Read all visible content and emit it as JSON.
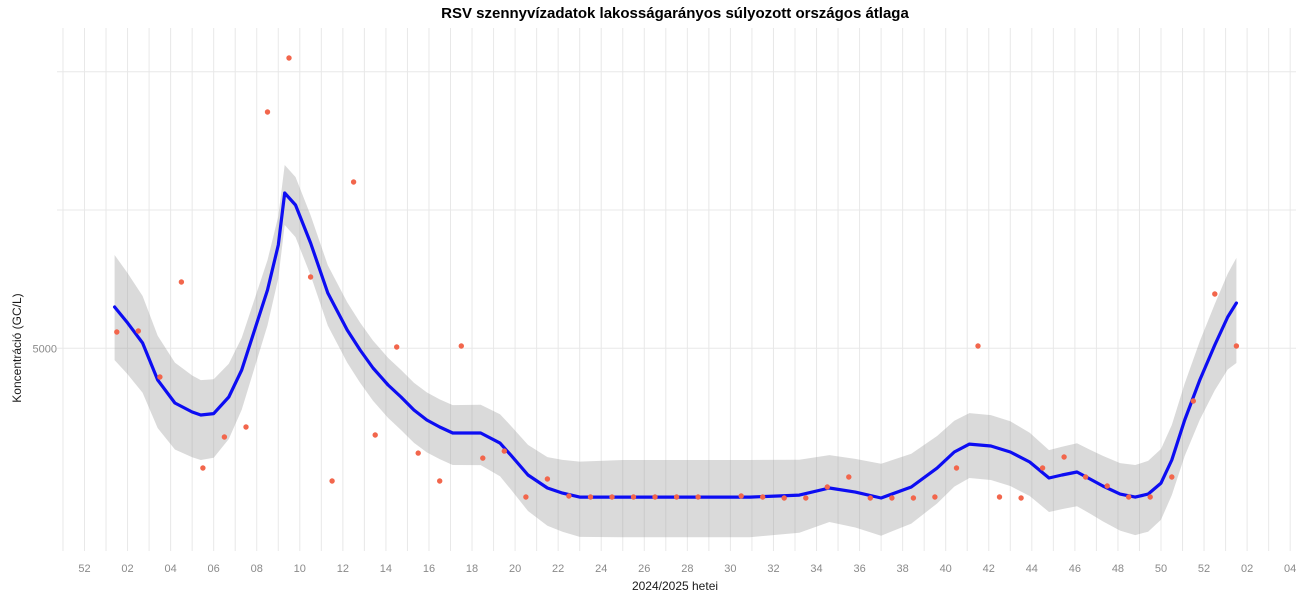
{
  "page": {
    "background": "#ffffff"
  },
  "chart_data": {
    "type": "line",
    "title": "RSV szennyvízadatok lakosságarányos súlyozott országos átlaga",
    "xlabel": "2024/2025 hetei",
    "ylabel": "Koncentráció (GC/L)",
    "legend": "none",
    "grid": "on",
    "colors": {
      "trend": "#0d0df2",
      "points": "#f2664c",
      "band": "rgba(150,150,150,0.35)",
      "grid": "#e8e8e8",
      "tick_text": "#8a8a8a",
      "axis_title_text": "#1a1a1a",
      "title_text": "#000000"
    },
    "x_axis": {
      "tick_week_offsets": [
        0,
        2,
        4,
        6,
        8,
        10,
        12,
        14,
        16,
        18,
        20,
        22,
        24,
        26,
        28,
        30,
        32,
        34,
        36,
        38,
        40,
        42,
        44,
        46,
        48,
        50,
        52,
        54,
        56
      ],
      "tick_labels": [
        "52",
        "02",
        "04",
        "06",
        "08",
        "10",
        "12",
        "14",
        "16",
        "18",
        "20",
        "22",
        "24",
        "26",
        "28",
        "30",
        "32",
        "34",
        "36",
        "38",
        "40",
        "42",
        "44",
        "46",
        "48",
        "50",
        "52",
        "02",
        "04"
      ],
      "gridline_week_offsets_range": [
        -1,
        56
      ],
      "range_week_offsets": [
        -1.3,
        56.4
      ]
    },
    "y_axis": {
      "tick_values": [
        5000
      ],
      "tick_labels": [
        "5000"
      ],
      "gridline_values": [
        5000,
        7500,
        10000
      ],
      "range": [
        1300,
        10800
      ]
    },
    "scatter_points": [
      [
        1.5,
        5295
      ],
      [
        2.5,
        5313
      ],
      [
        3.5,
        4481
      ],
      [
        4.5,
        6199
      ],
      [
        5.5,
        2836
      ],
      [
        6.5,
        3397
      ],
      [
        7.5,
        3578
      ],
      [
        8.5,
        9272
      ],
      [
        9.5,
        10248
      ],
      [
        10.5,
        6289
      ],
      [
        11.5,
        2601
      ],
      [
        12.5,
        8007
      ],
      [
        13.5,
        3433
      ],
      [
        14.5,
        5024
      ],
      [
        15.5,
        3106
      ],
      [
        16.5,
        2601
      ],
      [
        17.5,
        5042
      ],
      [
        18.5,
        3016
      ],
      [
        19.5,
        3142
      ],
      [
        20.5,
        2312
      ],
      [
        21.5,
        2638
      ],
      [
        22.5,
        2330
      ],
      [
        23.5,
        2312
      ],
      [
        24.5,
        2312
      ],
      [
        25.5,
        2312
      ],
      [
        26.5,
        2312
      ],
      [
        27.5,
        2312
      ],
      [
        28.5,
        2312
      ],
      [
        30.5,
        2330
      ],
      [
        31.5,
        2312
      ],
      [
        32.5,
        2294
      ],
      [
        33.5,
        2294
      ],
      [
        34.5,
        2493
      ],
      [
        35.5,
        2674
      ],
      [
        36.5,
        2294
      ],
      [
        37.5,
        2294
      ],
      [
        38.5,
        2294
      ],
      [
        39.5,
        2312
      ],
      [
        40.5,
        2836
      ],
      [
        41.5,
        5042
      ],
      [
        42.5,
        2312
      ],
      [
        43.5,
        2294
      ],
      [
        44.5,
        2836
      ],
      [
        45.5,
        3035
      ],
      [
        46.5,
        2674
      ],
      [
        47.5,
        2511
      ],
      [
        48.5,
        2312
      ],
      [
        49.5,
        2312
      ],
      [
        50.5,
        2674
      ],
      [
        51.5,
        4048
      ],
      [
        52.5,
        5982
      ],
      [
        53.5,
        5042
      ]
    ],
    "trend_line": {
      "x": [
        1.4,
        2,
        2.7,
        3.4,
        4.2,
        5,
        5.4,
        6,
        6.7,
        7.3,
        7.9,
        8.5,
        9,
        9.3,
        9.8,
        10.5,
        11.3,
        12.2,
        12.8,
        13.4,
        14.1,
        14.7,
        15.3,
        15.9,
        16.5,
        17.1,
        18.4,
        19.3,
        19.8,
        20.6,
        21.5,
        22.2,
        23,
        25,
        27,
        29,
        30.9,
        33.2,
        34.6,
        35.8,
        37,
        38.4,
        39.6,
        40.4,
        41.1,
        42.1,
        43,
        43.9,
        44.8,
        45.4,
        46.1,
        46.7,
        47.3,
        48.1,
        48.8,
        49.4,
        50,
        50.5,
        51.1,
        51.8,
        52.5,
        53.1,
        53.5
      ],
      "y": [
        5747,
        5460,
        5096,
        4427,
        4011,
        3849,
        3795,
        3820,
        4120,
        4608,
        5331,
        6054,
        6868,
        7808,
        7591,
        6904,
        6000,
        5331,
        4969,
        4644,
        4336,
        4119,
        3884,
        3703,
        3577,
        3468,
        3468,
        3287,
        3070,
        2709,
        2474,
        2383,
        2311,
        2311,
        2311,
        2311,
        2311,
        2347,
        2474,
        2401,
        2293,
        2492,
        2835,
        3125,
        3269,
        3233,
        3125,
        2944,
        2655,
        2709,
        2763,
        2637,
        2510,
        2365,
        2311,
        2365,
        2564,
        2980,
        3703,
        4427,
        5060,
        5566,
        5819
      ]
    },
    "confidence_band": {
      "x": [
        1.4,
        2,
        2.7,
        3.4,
        4.2,
        5,
        5.4,
        6,
        6.7,
        7.3,
        7.9,
        8.5,
        9,
        9.3,
        9.8,
        10.5,
        11.3,
        12.2,
        12.8,
        13.4,
        14.1,
        14.7,
        15.3,
        15.9,
        16.5,
        17.1,
        18.4,
        19.3,
        19.8,
        20.6,
        21.5,
        22.2,
        23,
        25,
        27,
        29,
        30.9,
        33.2,
        34.6,
        35.8,
        37,
        38.4,
        39.6,
        40.4,
        41.1,
        42.1,
        43,
        43.9,
        44.8,
        45.4,
        46.1,
        46.7,
        47.3,
        48.1,
        48.8,
        49.4,
        50,
        50.5,
        51.1,
        51.8,
        52.5,
        53.1,
        53.5
      ],
      "upper": [
        6687,
        6360,
        5946,
        5227,
        4741,
        4509,
        4425,
        4440,
        4720,
        5188,
        5891,
        6594,
        7388,
        8313,
        8096,
        7404,
        6500,
        5831,
        5464,
        5139,
        4826,
        4609,
        4379,
        4203,
        4077,
        3973,
        3978,
        3807,
        3600,
        3254,
        3034,
        2983,
        2951,
        2981,
        2981,
        2981,
        2981,
        2987,
        3070,
        3001,
        2913,
        3092,
        3415,
        3690,
        3829,
        3793,
        3680,
        3474,
        3160,
        3219,
        3283,
        3167,
        3055,
        2925,
        2891,
        2965,
        3179,
        3613,
        4363,
        5127,
        5800,
        6346,
        6634
      ],
      "lower": [
        4787,
        4530,
        4196,
        3557,
        3171,
        3029,
        2980,
        3020,
        3360,
        3888,
        4651,
        5414,
        6268,
        7228,
        7011,
        6319,
        5410,
        4741,
        4377,
        4051,
        3741,
        3524,
        3294,
        3118,
        2997,
        2890,
        2888,
        2687,
        2450,
        2059,
        1794,
        1683,
        1591,
        1586,
        1586,
        1586,
        1586,
        1667,
        1860,
        1761,
        1613,
        1832,
        2195,
        2500,
        2655,
        2619,
        2511,
        2330,
        2041,
        2094,
        2145,
        2012,
        1870,
        1705,
        1624,
        1685,
        1899,
        2347,
        3053,
        3707,
        4240,
        4616,
        4734
      ]
    }
  }
}
